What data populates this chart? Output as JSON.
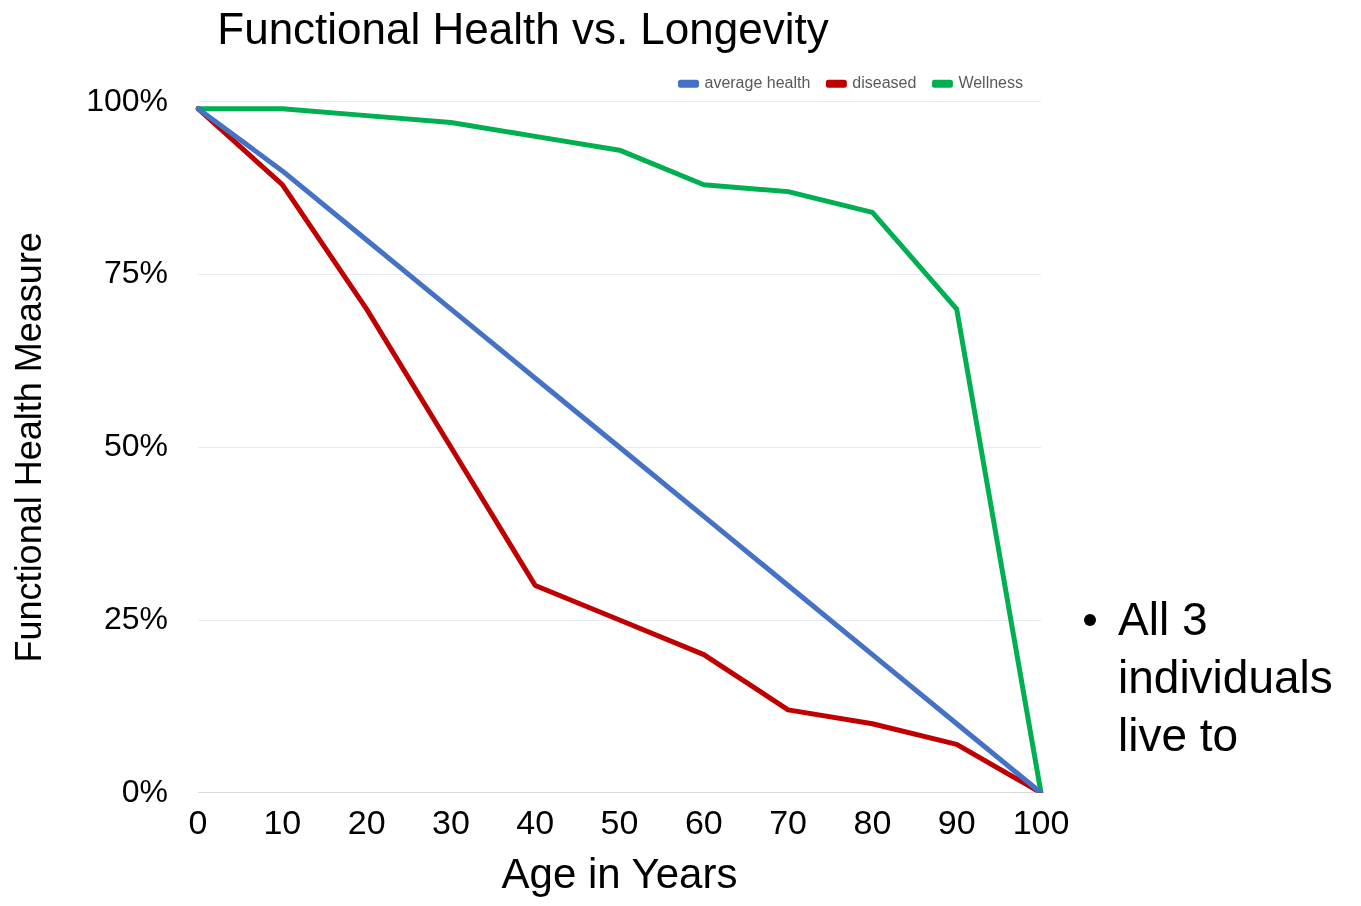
{
  "chart_data": {
    "type": "line",
    "title": "Functional Health vs. Longevity",
    "xlabel": "Age in Years",
    "ylabel": "Functional Health Measure",
    "categories": [
      "0",
      "10",
      "20",
      "30",
      "40",
      "50",
      "60",
      "70",
      "80",
      "90",
      "100"
    ],
    "series": [
      {
        "name": "average health",
        "color": "#4472c4",
        "values": [
          99,
          90,
          80,
          70,
          60,
          50,
          40,
          30,
          20,
          10,
          0
        ]
      },
      {
        "name": "diseased",
        "color": "#c00000",
        "values": [
          99,
          88,
          70,
          50,
          30,
          25,
          20,
          12,
          10,
          7,
          0
        ]
      },
      {
        "name": "Wellness",
        "color": "#00b050",
        "values": [
          99,
          99,
          98,
          97,
          95,
          93,
          88,
          87,
          84,
          70,
          0
        ]
      }
    ],
    "ylim": [
      0,
      100
    ],
    "yticks": [
      {
        "value": 0,
        "label": "0%"
      },
      {
        "value": 25,
        "label": "25%"
      },
      {
        "value": 50,
        "label": "50%"
      },
      {
        "value": 75,
        "label": "75%"
      },
      {
        "value": 100,
        "label": "100%"
      }
    ],
    "grid": "y",
    "legend": "top right",
    "marker": "none",
    "line_style": "solid",
    "annotations": [
      "All 3 individuals live to"
    ]
  }
}
